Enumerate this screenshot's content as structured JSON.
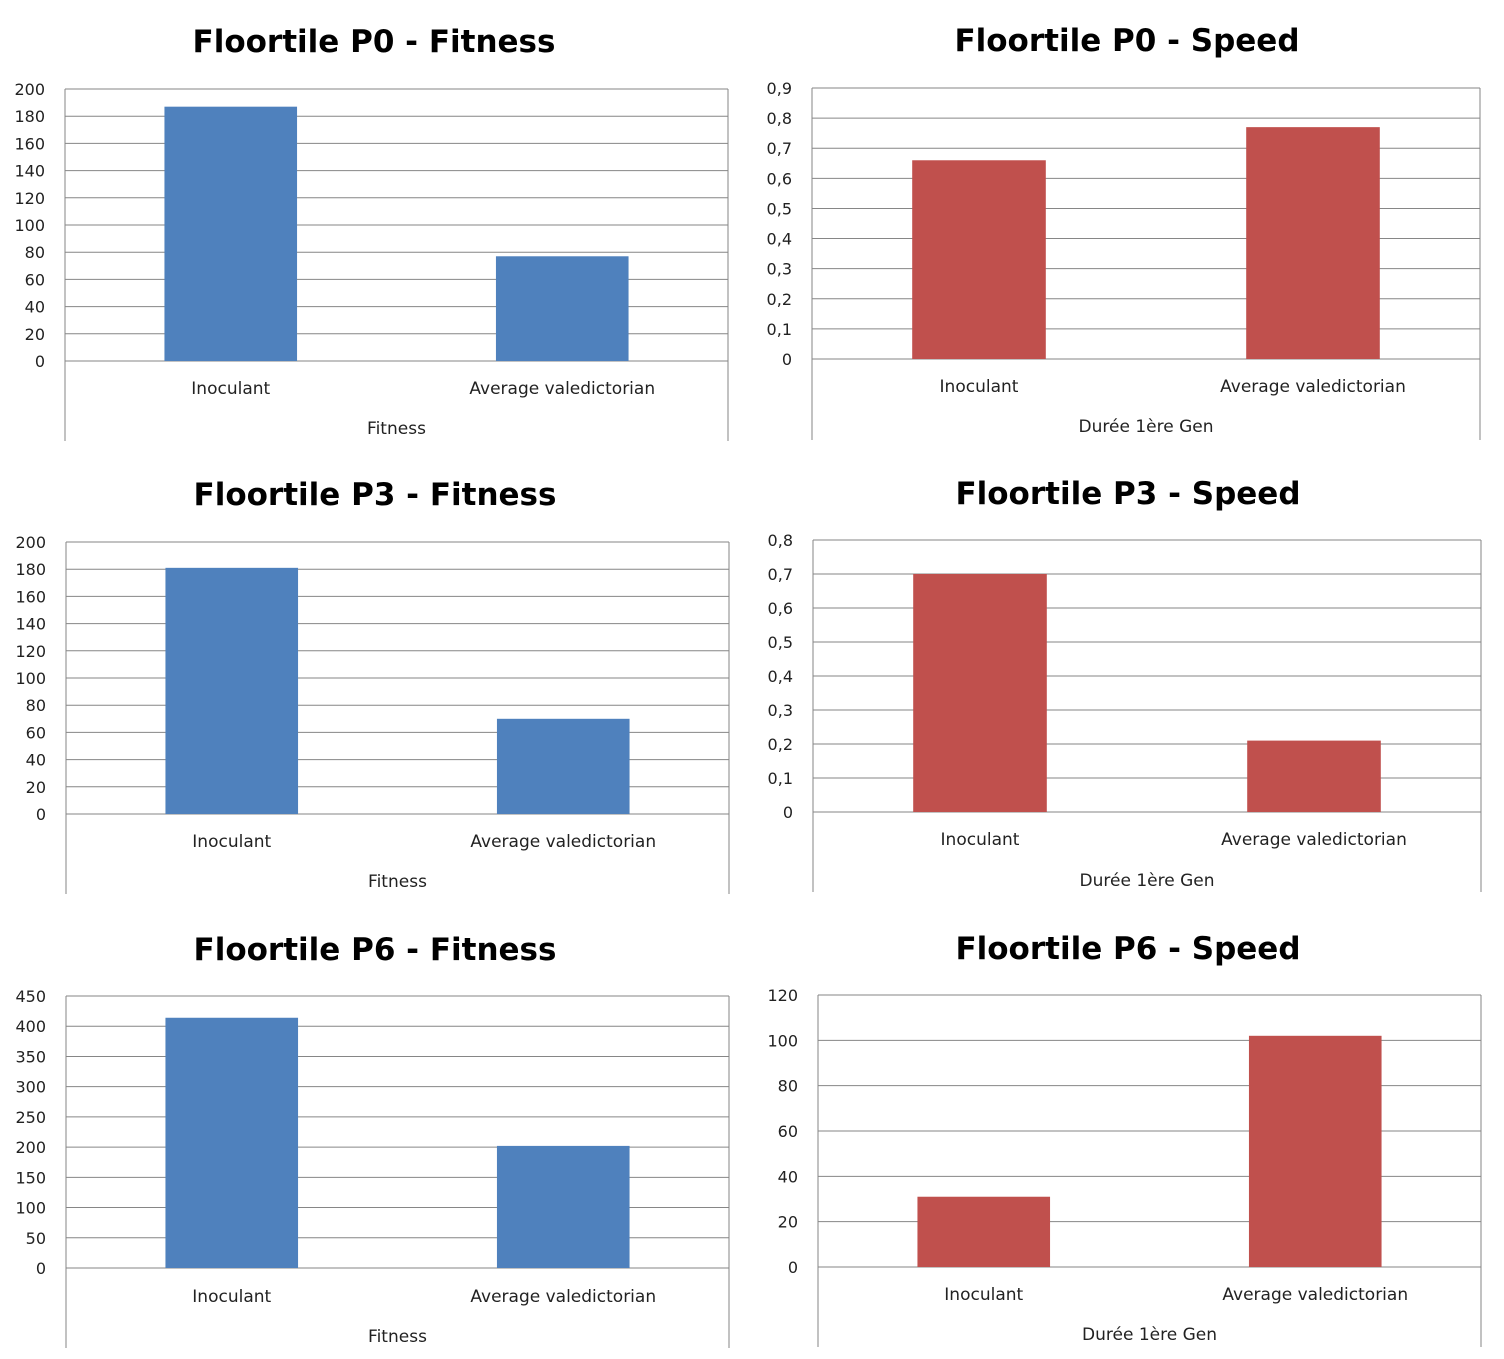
{
  "colors": {
    "fitness": "#4f81bd",
    "speed": "#c0504d"
  },
  "chart_data": [
    {
      "type": "bar",
      "title": "Floortile P0 - Fitness",
      "categories": [
        "Inoculant",
        "Average valedictorian"
      ],
      "group_label": "Fitness",
      "series": [
        {
          "values": [
            187,
            77
          ],
          "color": "#4f81bd"
        }
      ],
      "ylim": [
        0,
        200
      ],
      "yticks": [
        "0",
        "20",
        "40",
        "60",
        "80",
        "100",
        "120",
        "140",
        "160",
        "180",
        "200"
      ],
      "grid": true,
      "legend": "none"
    },
    {
      "type": "bar",
      "title": "Floortile P0 - Speed",
      "categories": [
        "Inoculant",
        "Average valedictorian"
      ],
      "group_label": "Durée 1ère Gen",
      "series": [
        {
          "values": [
            0.66,
            0.77
          ],
          "color": "#c0504d"
        }
      ],
      "ylim": [
        0,
        0.9
      ],
      "yticks": [
        "0",
        "0,1",
        "0,2",
        "0,3",
        "0,4",
        "0,5",
        "0,6",
        "0,7",
        "0,8",
        "0,9"
      ],
      "grid": true,
      "legend": "none"
    },
    {
      "type": "bar",
      "title": "Floortile P3 - Fitness",
      "categories": [
        "Inoculant",
        "Average valedictorian"
      ],
      "group_label": "Fitness",
      "series": [
        {
          "values": [
            181,
            70
          ],
          "color": "#4f81bd"
        }
      ],
      "ylim": [
        0,
        200
      ],
      "yticks": [
        "0",
        "20",
        "40",
        "60",
        "80",
        "100",
        "120",
        "140",
        "160",
        "180",
        "200"
      ],
      "grid": true,
      "legend": "none"
    },
    {
      "type": "bar",
      "title": "Floortile P3 - Speed",
      "categories": [
        "Inoculant",
        "Average valedictorian"
      ],
      "group_label": "Durée 1ère Gen",
      "series": [
        {
          "values": [
            0.7,
            0.21
          ],
          "color": "#c0504d"
        }
      ],
      "ylim": [
        0,
        0.8
      ],
      "yticks": [
        "0",
        "0,1",
        "0,2",
        "0,3",
        "0,4",
        "0,5",
        "0,6",
        "0,7",
        "0,8"
      ],
      "grid": true,
      "legend": "none"
    },
    {
      "type": "bar",
      "title": "Floortile P6 - Fitness",
      "categories": [
        "Inoculant",
        "Average valedictorian"
      ],
      "group_label": "Fitness",
      "series": [
        {
          "values": [
            414,
            202
          ],
          "color": "#4f81bd"
        }
      ],
      "ylim": [
        0,
        450
      ],
      "yticks": [
        "0",
        "50",
        "100",
        "150",
        "200",
        "250",
        "300",
        "350",
        "400",
        "450"
      ],
      "grid": true,
      "legend": "none"
    },
    {
      "type": "bar",
      "title": "Floortile P6 - Speed",
      "categories": [
        "Inoculant",
        "Average valedictorian"
      ],
      "group_label": "Durée 1ère Gen",
      "series": [
        {
          "values": [
            31,
            102
          ],
          "color": "#c0504d"
        }
      ],
      "ylim": [
        0,
        120
      ],
      "yticks": [
        "0",
        "20",
        "40",
        "60",
        "80",
        "100",
        "120"
      ],
      "grid": true,
      "legend": "none"
    }
  ]
}
